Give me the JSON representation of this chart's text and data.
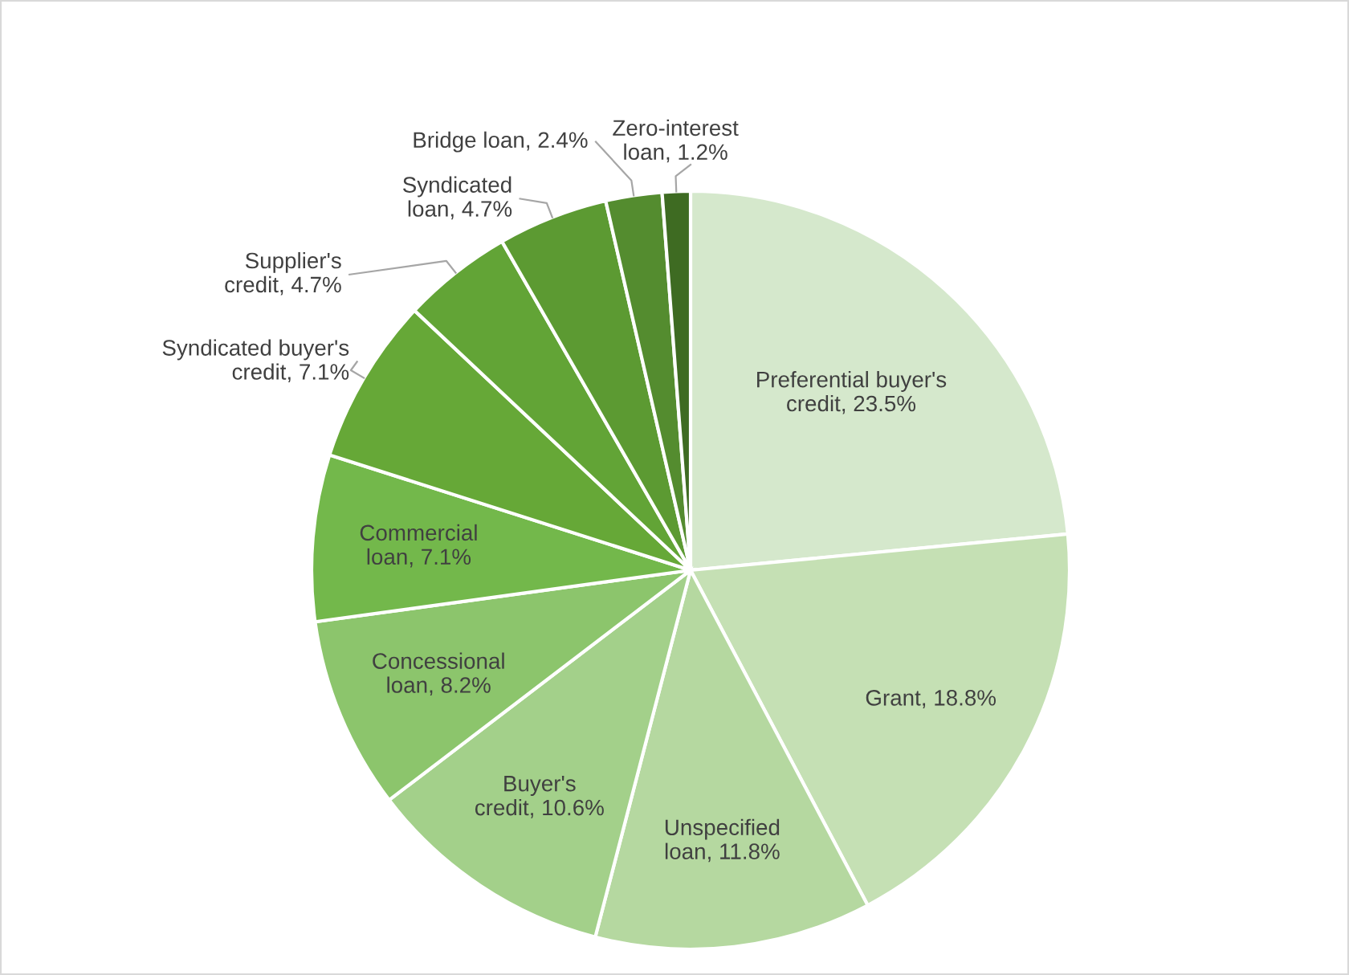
{
  "chart_data": {
    "type": "pie",
    "categories": [
      "Preferential buyer's credit",
      "Grant",
      "Unspecified loan",
      "Buyer's credit",
      "Concessional loan",
      "Commercial loan",
      "Syndicated buyer's credit",
      "Supplier's credit",
      "Syndicated loan",
      "Bridge loan",
      "Zero-interest loan"
    ],
    "values": [
      23.5,
      18.8,
      11.8,
      10.6,
      8.2,
      7.1,
      7.1,
      4.7,
      4.7,
      2.4,
      1.2
    ],
    "value_labels": [
      "23.5%",
      "18.8%",
      "11.8%",
      "10.6%",
      "8.2%",
      "7.1%",
      "7.1%",
      "4.7%",
      "4.7%",
      "2.4%",
      "1.2%"
    ],
    "colors": [
      "#d5e8cc",
      "#c5e0b4",
      "#b5d8a0",
      "#a3d08a",
      "#8cc56c",
      "#73b84b",
      "#66a837",
      "#62a436",
      "#5c9a32",
      "#548c2f",
      "#3e6b22"
    ]
  }
}
